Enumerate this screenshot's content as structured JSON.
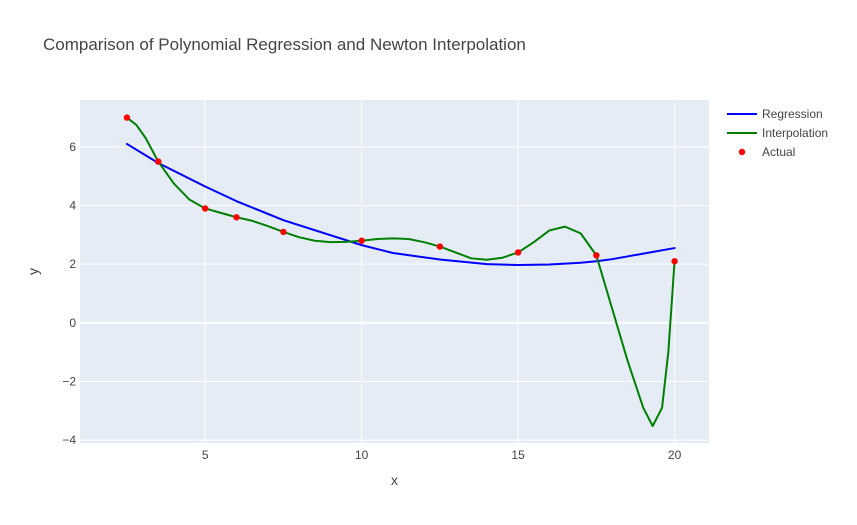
{
  "chart_data": {
    "type": "line",
    "title": "Comparison of Polynomial Regression and Newton Interpolation",
    "xlabel": "x",
    "ylabel": "y",
    "xlim": [
      1.0,
      21.1
    ],
    "ylim": [
      -4.1,
      7.6
    ],
    "x_ticks": [
      5,
      10,
      15,
      20
    ],
    "y_ticks": [
      -4,
      -2,
      0,
      2,
      4,
      6
    ],
    "x_tick_labels": [
      "5",
      "10",
      "15",
      "20"
    ],
    "y_tick_labels": [
      "−4",
      "−2",
      "0",
      "2",
      "4",
      "6"
    ],
    "grid": true,
    "legend_position": "top-right",
    "colors": {
      "plot_background": "#e5ecf6",
      "grid": "#ffffff",
      "regression": "#0000ff",
      "interpolation": "#008000",
      "actual": "#ff0000"
    },
    "series": [
      {
        "name": "Regression",
        "mode": "line",
        "x": [
          2.5,
          3.5,
          5,
          6,
          7.5,
          10,
          11,
          12.5,
          14,
          15,
          16,
          17,
          17.5,
          18,
          19,
          20
        ],
        "values": [
          6.1,
          5.45,
          4.65,
          4.15,
          3.5,
          2.65,
          2.38,
          2.16,
          2.0,
          1.97,
          1.99,
          2.05,
          2.1,
          2.17,
          2.36,
          2.55
        ]
      },
      {
        "name": "Interpolation",
        "mode": "line",
        "x": [
          2.5,
          2.8,
          3.1,
          3.5,
          4.0,
          4.5,
          5.0,
          5.5,
          6.0,
          6.5,
          7.0,
          7.5,
          8.0,
          8.5,
          9.0,
          9.5,
          10.0,
          10.5,
          11.0,
          11.5,
          12.0,
          12.5,
          13.0,
          13.5,
          14.0,
          14.5,
          15.0,
          15.5,
          16.0,
          16.5,
          17.0,
          17.5,
          18.0,
          18.5,
          19.0,
          19.3,
          19.6,
          19.8,
          20.0
        ],
        "values": [
          7.0,
          6.75,
          6.3,
          5.5,
          4.75,
          4.2,
          3.9,
          3.75,
          3.6,
          3.48,
          3.3,
          3.1,
          2.92,
          2.8,
          2.75,
          2.76,
          2.8,
          2.86,
          2.88,
          2.86,
          2.75,
          2.6,
          2.4,
          2.2,
          2.15,
          2.22,
          2.4,
          2.75,
          3.15,
          3.28,
          3.05,
          2.3,
          0.5,
          -1.3,
          -2.9,
          -3.52,
          -2.9,
          -1.0,
          2.1
        ]
      },
      {
        "name": "Actual",
        "mode": "markers",
        "x": [
          2.5,
          3.5,
          5,
          6,
          7.5,
          10,
          12.5,
          15,
          17.5,
          20
        ],
        "values": [
          7.0,
          5.5,
          3.9,
          3.6,
          3.1,
          2.8,
          2.6,
          2.4,
          2.3,
          2.1
        ]
      }
    ]
  }
}
